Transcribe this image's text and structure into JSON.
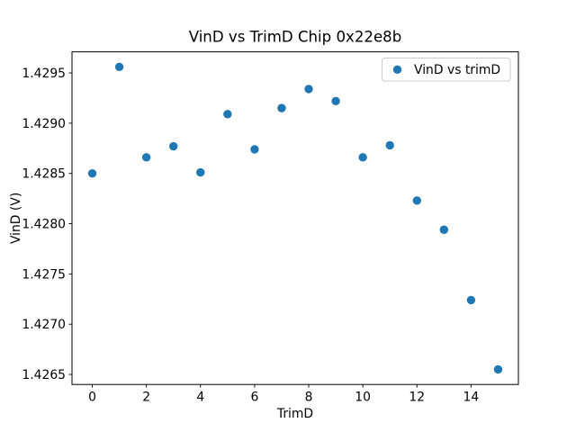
{
  "window": {
    "background": "#ffffff"
  },
  "chart_data": {
    "type": "scatter",
    "title": "VinD vs TrimD Chip 0x22e8b",
    "xlabel": "TrimD",
    "ylabel": "VinD (V)",
    "legend": {
      "position": "upper right",
      "label": "VinD vs trimD"
    },
    "series": [
      {
        "name": "VinD vs trimD",
        "marker": "circle",
        "color": "#1f77b4",
        "x": [
          0,
          1,
          2,
          3,
          4,
          5,
          6,
          7,
          8,
          9,
          10,
          11,
          12,
          13,
          14,
          15
        ],
        "y": [
          1.4285,
          1.42956,
          1.42866,
          1.42877,
          1.42851,
          1.42909,
          1.42874,
          1.42915,
          1.42934,
          1.42922,
          1.42866,
          1.42878,
          1.42823,
          1.42794,
          1.42724,
          1.42655
        ]
      }
    ],
    "xlim": [
      -0.75,
      15.75
    ],
    "ylim": [
      1.4264,
      1.42971
    ],
    "xticks": [
      0,
      2,
      4,
      6,
      8,
      10,
      12,
      14
    ],
    "yticks": [
      1.4265,
      1.427,
      1.4275,
      1.428,
      1.4285,
      1.429,
      1.4295
    ],
    "ytick_decimals": 4,
    "grid": false,
    "legend_position": "upper right"
  },
  "colors": {
    "marker": "#1f77b4",
    "text": "#000000",
    "spine": "#000000",
    "legend_edge": "#cccccc",
    "background": "#ffffff"
  }
}
